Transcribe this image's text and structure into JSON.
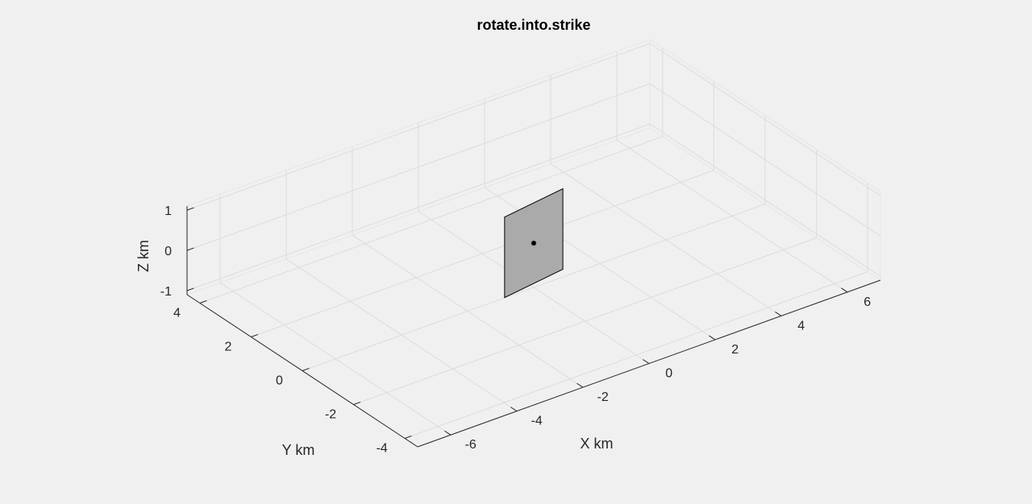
{
  "chart_data": {
    "type": "3d-surface",
    "title": "rotate.into.strike",
    "xlabel": "X km",
    "ylabel": "Y km",
    "zlabel": "Z km",
    "xlim": [
      -7,
      7
    ],
    "ylim": [
      -4.5,
      4.5
    ],
    "zlim": [
      -1.1,
      1.1
    ],
    "xticks": [
      -6,
      -4,
      -2,
      0,
      2,
      4,
      6
    ],
    "yticks": [
      -4,
      -2,
      0,
      2,
      4
    ],
    "zticks": [
      -1,
      0,
      1
    ],
    "grid": true,
    "fault_plane": {
      "color": "#aaaaaa",
      "edge_color": "#000000",
      "corners": [
        {
          "x": -0.99,
          "y": -0.14,
          "z": 1.0
        },
        {
          "x": 0.99,
          "y": 0.14,
          "z": 1.0
        },
        {
          "x": 0.99,
          "y": 0.14,
          "z": -1.0
        },
        {
          "x": -0.99,
          "y": -0.14,
          "z": -1.0
        }
      ]
    },
    "hypocenter": {
      "x": 0,
      "y": 0,
      "z": 0,
      "color": "#000000"
    }
  }
}
